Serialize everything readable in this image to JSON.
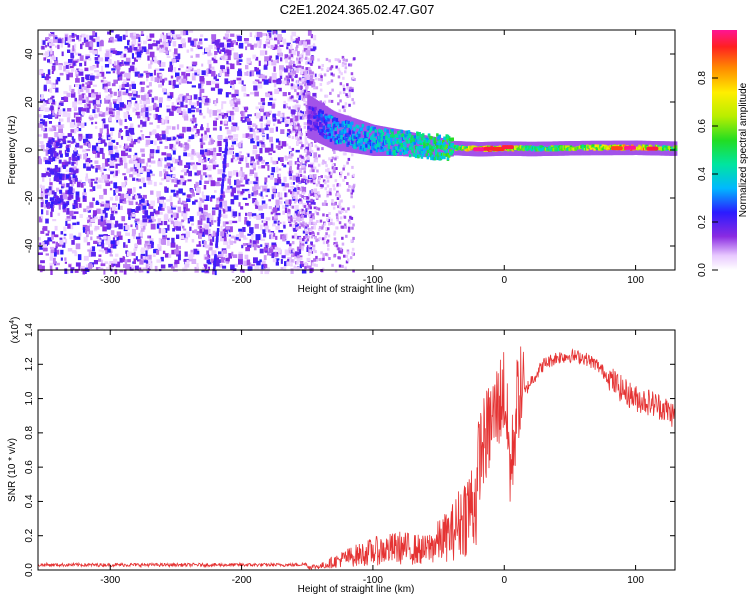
{
  "title": "C2E1.2024.365.02.47.G07",
  "chart_data": [
    {
      "type": "heatmap",
      "xlabel": "Height of straight line (km)",
      "ylabel": "Frequency (Hz)",
      "xlim": [
        -355,
        130
      ],
      "ylim": [
        -50,
        50
      ],
      "xticks": [
        -300,
        -200,
        -100,
        0,
        100
      ],
      "yticks": [
        -40,
        -20,
        0,
        20,
        40
      ],
      "colorbar": {
        "label": "Normalized spectral amplitude",
        "range": [
          0,
          1
        ],
        "ticks": [
          "0.0",
          "0.2",
          "0.4",
          "0.6",
          "0.8"
        ]
      },
      "ridge": {
        "description_points_x": [
          -150,
          -130,
          -100,
          -80,
          -60,
          -40,
          -20,
          0,
          20,
          60,
          100,
          125
        ],
        "center_freq": [
          14,
          8,
          4,
          3,
          1.5,
          0.8,
          0.3,
          0.6,
          0.4,
          0.8,
          0.9,
          0.6
        ],
        "peak_amplitude": [
          0.2,
          0.4,
          0.45,
          0.5,
          0.55,
          0.6,
          1.0,
          0.9,
          0.6,
          0.75,
          0.95,
          0.7
        ]
      }
    },
    {
      "type": "line",
      "xlabel": "Height of straight line (km)",
      "ylabel": "SNR (10 * v/v)",
      "multiplier": "(x10^4)",
      "xlim": [
        -355,
        130
      ],
      "ylim": [
        0,
        1.4
      ],
      "xticks": [
        -300,
        -200,
        -100,
        0,
        100
      ],
      "yticks": [
        "0.0",
        "0.2",
        "0.4",
        "0.6",
        "0.8",
        "1.0",
        "1.2",
        "1.4"
      ],
      "color": "#e53333",
      "envelope_x": [
        -355,
        -160,
        -140,
        -120,
        -100,
        -80,
        -60,
        -40,
        -30,
        -20,
        -10,
        0,
        5,
        10,
        20,
        30,
        40,
        50,
        60,
        70,
        80,
        90,
        100,
        110,
        120,
        130
      ],
      "envelope_y": [
        0.02,
        0.02,
        0.03,
        0.1,
        0.15,
        0.18,
        0.16,
        0.3,
        0.45,
        0.6,
        0.8,
        1.0,
        0.5,
        0.95,
        1.1,
        1.2,
        1.24,
        1.25,
        1.24,
        1.2,
        1.12,
        1.05,
        1.0,
        0.98,
        0.95,
        0.9
      ]
    }
  ]
}
